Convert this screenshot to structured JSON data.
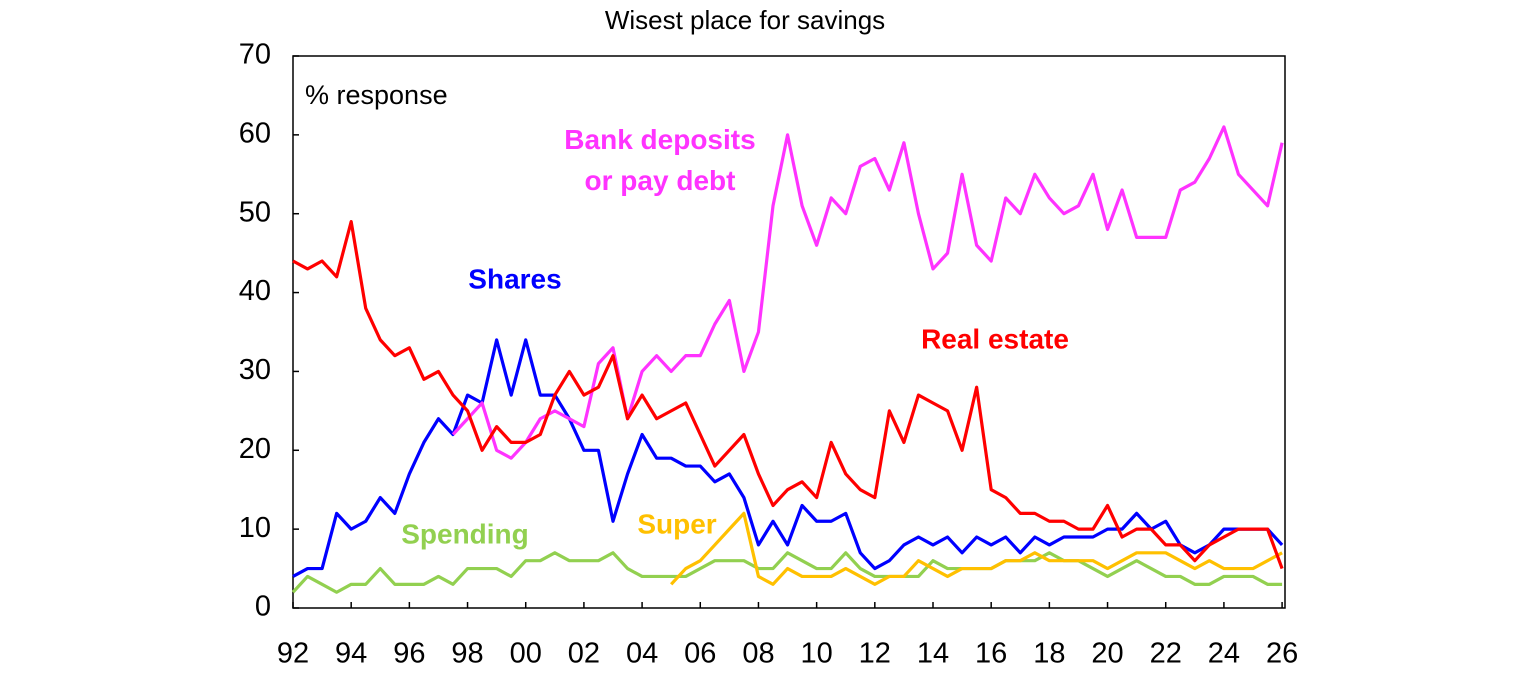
{
  "chart_data": {
    "type": "line",
    "title": "Wisest place for savings",
    "ylabel": "% response",
    "xlim": [
      1992,
      2026.1
    ],
    "ylim": [
      0,
      70
    ],
    "yticks": [
      0,
      10,
      20,
      30,
      40,
      50,
      60,
      70
    ],
    "xticks": [
      {
        "value": 1992,
        "label": "92"
      },
      {
        "value": 1994,
        "label": "94"
      },
      {
        "value": 1996,
        "label": "96"
      },
      {
        "value": 1998,
        "label": "98"
      },
      {
        "value": 2000,
        "label": "00"
      },
      {
        "value": 2002,
        "label": "02"
      },
      {
        "value": 2004,
        "label": "04"
      },
      {
        "value": 2006,
        "label": "06"
      },
      {
        "value": 2008,
        "label": "08"
      },
      {
        "value": 2010,
        "label": "10"
      },
      {
        "value": 2012,
        "label": "12"
      },
      {
        "value": 2014,
        "label": "14"
      },
      {
        "value": 2016,
        "label": "16"
      },
      {
        "value": 2018,
        "label": "18"
      },
      {
        "value": 2020,
        "label": "20"
      },
      {
        "value": 2022,
        "label": "22"
      },
      {
        "value": 2024,
        "label": "24"
      },
      {
        "value": 2026,
        "label": "26"
      }
    ],
    "grid": false,
    "x": [
      1992,
      1992.5,
      1993,
      1993.5,
      1994,
      1994.5,
      1995,
      1995.5,
      1996,
      1996.5,
      1997,
      1997.5,
      1998,
      1998.5,
      1999,
      1999.5,
      2000,
      2000.5,
      2001,
      2001.5,
      2002,
      2002.5,
      2003,
      2003.5,
      2004,
      2004.5,
      2005,
      2005.5,
      2006,
      2006.5,
      2007,
      2007.5,
      2008,
      2008.5,
      2009,
      2009.5,
      2010,
      2010.5,
      2011,
      2011.5,
      2012,
      2012.5,
      2013,
      2013.5,
      2014,
      2014.5,
      2015,
      2015.5,
      2016,
      2016.5,
      2017,
      2017.5,
      2018,
      2018.5,
      2019,
      2019.5,
      2020,
      2020.5,
      2021,
      2021.5,
      2022,
      2022.5,
      2023,
      2023.5,
      2024,
      2024.5,
      2025,
      2025.5,
      2026
    ],
    "series": [
      {
        "name": "Spending",
        "color": "#92d050",
        "values": [
          2,
          4,
          3,
          2,
          3,
          3,
          5,
          3,
          3,
          3,
          4,
          3,
          5,
          5,
          5,
          4,
          6,
          6,
          7,
          6,
          6,
          6,
          7,
          5,
          4,
          4,
          4,
          4,
          5,
          6,
          6,
          6,
          5,
          5,
          7,
          6,
          5,
          5,
          7,
          5,
          4,
          4,
          4,
          4,
          6,
          5,
          5,
          5,
          5,
          6,
          6,
          6,
          7,
          6,
          6,
          5,
          4,
          5,
          6,
          5,
          4,
          4,
          3,
          3,
          4,
          4,
          4,
          3,
          3
        ]
      },
      {
        "name": "Super",
        "color": "#ffc000",
        "values": [
          null,
          null,
          null,
          null,
          null,
          null,
          null,
          null,
          null,
          null,
          null,
          null,
          null,
          null,
          null,
          null,
          null,
          null,
          null,
          null,
          null,
          null,
          null,
          null,
          null,
          null,
          3,
          5,
          6,
          8,
          10,
          12,
          4,
          3,
          5,
          4,
          4,
          4,
          5,
          4,
          3,
          4,
          4,
          6,
          5,
          4,
          5,
          5,
          5,
          6,
          6,
          7,
          6,
          6,
          6,
          6,
          5,
          6,
          7,
          7,
          7,
          6,
          5,
          6,
          5,
          5,
          5,
          6,
          7
        ]
      },
      {
        "name": "Shares",
        "color": "#0000ff",
        "values": [
          4,
          5,
          5,
          12,
          10,
          11,
          14,
          12,
          17,
          21,
          24,
          22,
          27,
          26,
          34,
          27,
          34,
          27,
          27,
          24,
          20,
          20,
          11,
          17,
          22,
          19,
          19,
          18,
          18,
          16,
          17,
          14,
          8,
          11,
          8,
          13,
          11,
          11,
          12,
          7,
          5,
          6,
          8,
          9,
          8,
          9,
          7,
          9,
          8,
          9,
          7,
          9,
          8,
          9,
          9,
          9,
          10,
          10,
          12,
          10,
          11,
          8,
          7,
          8,
          10,
          10,
          10,
          10,
          8
        ]
      },
      {
        "name": "Bank deposits\nor pay debt",
        "color": "#ff33ff",
        "values": [
          null,
          null,
          null,
          null,
          null,
          null,
          null,
          null,
          null,
          null,
          null,
          22,
          24,
          26,
          20,
          19,
          21,
          24,
          25,
          24,
          23,
          31,
          33,
          24,
          30,
          32,
          30,
          32,
          32,
          36,
          39,
          30,
          35,
          51,
          60,
          51,
          46,
          52,
          50,
          56,
          57,
          53,
          59,
          50,
          43,
          45,
          55,
          46,
          44,
          52,
          50,
          55,
          52,
          50,
          51,
          55,
          48,
          53,
          47,
          47,
          47,
          53,
          54,
          57,
          61,
          55,
          53,
          51,
          59
        ]
      },
      {
        "name": "Real estate",
        "color": "#ff0000",
        "values": [
          44,
          43,
          44,
          42,
          49,
          38,
          34,
          32,
          33,
          29,
          30,
          27,
          25,
          20,
          23,
          21,
          21,
          22,
          27,
          30,
          27,
          28,
          32,
          24,
          27,
          24,
          25,
          26,
          22,
          18,
          20,
          22,
          17,
          13,
          15,
          16,
          14,
          21,
          17,
          15,
          14,
          25,
          21,
          27,
          26,
          25,
          20,
          28,
          15,
          14,
          12,
          12,
          11,
          11,
          10,
          10,
          13,
          9,
          10,
          10,
          8,
          8,
          6,
          8,
          9,
          10,
          10,
          10,
          5
        ]
      }
    ]
  }
}
